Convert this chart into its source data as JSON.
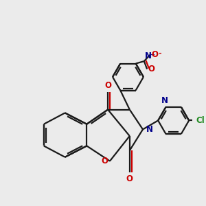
{
  "background_color": "#ebebeb",
  "line_color": "#1a1a1a",
  "bond_lw": 1.6,
  "figsize": [
    3.0,
    3.0
  ],
  "dpi": 100,
  "xlim": [
    0,
    10
  ],
  "ylim": [
    0,
    10
  ]
}
